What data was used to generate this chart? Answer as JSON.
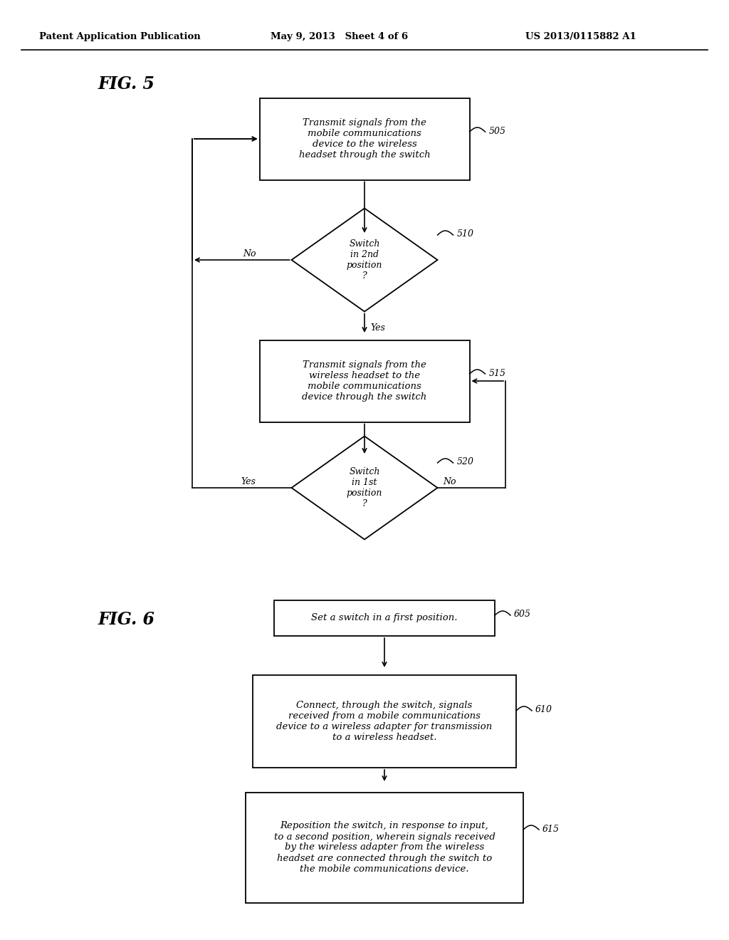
{
  "bg_color": "#ffffff",
  "header_left": "Patent Application Publication",
  "header_mid": "May 9, 2013   Sheet 4 of 6",
  "header_right": "US 2013/0115882 A1",
  "fig5_label": "FIG. 5",
  "fig6_label": "FIG. 6",
  "box505_text": "Transmit signals from the\nmobile communications\ndevice to the wireless\nheadset through the switch",
  "box505_ref": "505",
  "diamond510_text": "Switch\nin 2nd\nposition\n?",
  "diamond510_ref": "510",
  "box515_text": "Transmit signals from the\nwireless headset to the\nmobile communications\ndevice through the switch",
  "box515_ref": "515",
  "diamond520_text": "Switch\nin 1st\nposition\n?",
  "diamond520_ref": "520",
  "box605_text": "Set a switch in a first position.",
  "box605_ref": "605",
  "box610_text": "Connect, through the switch, signals\nreceived from a mobile communications\ndevice to a wireless adapter for transmission\nto a wireless headset.",
  "box610_ref": "610",
  "box615_text": "Reposition the switch, in response to input,\nto a second position, wherein signals received\nby the wireless adapter from the wireless\nheadset are connected through the switch to\nthe mobile communications device.",
  "box615_ref": "615",
  "label_510_no": "No",
  "label_510_yes": "Yes",
  "label_520_yes": "Yes",
  "label_520_no": "No"
}
